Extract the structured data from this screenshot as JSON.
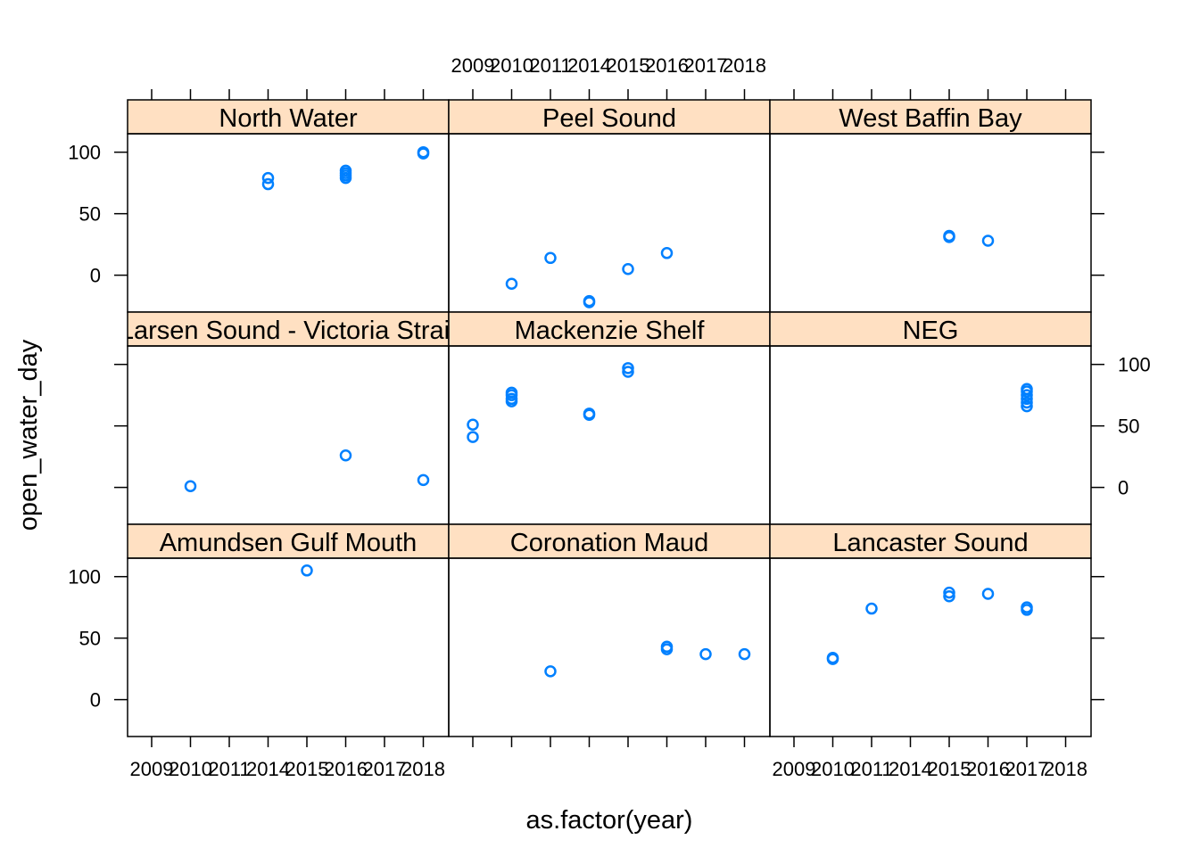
{
  "chart_data": {
    "type": "scatter",
    "layout": "lattice 3x3",
    "xlabel": "as.factor(year)",
    "ylabel": "open_water_day",
    "x_levels": [
      "2009",
      "2010",
      "2011",
      "2014",
      "2015",
      "2016",
      "2017",
      "2018"
    ],
    "y_ticks": [
      0,
      50,
      100
    ],
    "ylim": [
      -30,
      115
    ],
    "strip_color": "#ffe0c2",
    "point_color": "#0080ff",
    "panels": [
      {
        "title": "North Water",
        "points": [
          {
            "x": "2014",
            "y": 74
          },
          {
            "x": "2014",
            "y": 79
          },
          {
            "x": "2016",
            "y": 79
          },
          {
            "x": "2016",
            "y": 81
          },
          {
            "x": "2016",
            "y": 83
          },
          {
            "x": "2016",
            "y": 85
          },
          {
            "x": "2018",
            "y": 99
          },
          {
            "x": "2018",
            "y": 100
          }
        ]
      },
      {
        "title": "Peel Sound",
        "points": [
          {
            "x": "2010",
            "y": -7
          },
          {
            "x": "2011",
            "y": 14
          },
          {
            "x": "2014",
            "y": -21
          },
          {
            "x": "2014",
            "y": -22
          },
          {
            "x": "2015",
            "y": 5
          },
          {
            "x": "2016",
            "y": 18
          }
        ]
      },
      {
        "title": "West Baffin Bay",
        "points": [
          {
            "x": "2015",
            "y": 31
          },
          {
            "x": "2015",
            "y": 32
          },
          {
            "x": "2016",
            "y": 28
          }
        ]
      },
      {
        "title": "Larsen Sound - Victoria Strait",
        "points": [
          {
            "x": "2010",
            "y": 1
          },
          {
            "x": "2016",
            "y": 26
          },
          {
            "x": "2018",
            "y": 6
          }
        ]
      },
      {
        "title": "Mackenzie Shelf",
        "points": [
          {
            "x": "2009",
            "y": 51
          },
          {
            "x": "2009",
            "y": 41
          },
          {
            "x": "2010",
            "y": 70
          },
          {
            "x": "2010",
            "y": 72
          },
          {
            "x": "2010",
            "y": 75
          },
          {
            "x": "2010",
            "y": 77
          },
          {
            "x": "2014",
            "y": 59
          },
          {
            "x": "2014",
            "y": 60
          },
          {
            "x": "2015",
            "y": 94
          },
          {
            "x": "2015",
            "y": 97
          }
        ]
      },
      {
        "title": "NEG",
        "points": [
          {
            "x": "2017",
            "y": 66
          },
          {
            "x": "2017",
            "y": 69
          },
          {
            "x": "2017",
            "y": 72
          },
          {
            "x": "2017",
            "y": 75
          },
          {
            "x": "2017",
            "y": 78
          },
          {
            "x": "2017",
            "y": 80
          }
        ]
      },
      {
        "title": "Amundsen Gulf Mouth",
        "points": [
          {
            "x": "2015",
            "y": 105
          }
        ]
      },
      {
        "title": "Coronation Maud",
        "points": [
          {
            "x": "2011",
            "y": 23
          },
          {
            "x": "2016",
            "y": 41
          },
          {
            "x": "2016",
            "y": 43
          },
          {
            "x": "2017",
            "y": 37
          },
          {
            "x": "2018",
            "y": 37
          }
        ]
      },
      {
        "title": "Lancaster Sound",
        "points": [
          {
            "x": "2010",
            "y": 33
          },
          {
            "x": "2010",
            "y": 34
          },
          {
            "x": "2011",
            "y": 74
          },
          {
            "x": "2015",
            "y": 84
          },
          {
            "x": "2015",
            "y": 87
          },
          {
            "x": "2016",
            "y": 86
          },
          {
            "x": "2017",
            "y": 73
          },
          {
            "x": "2017",
            "y": 75
          }
        ]
      }
    ]
  }
}
